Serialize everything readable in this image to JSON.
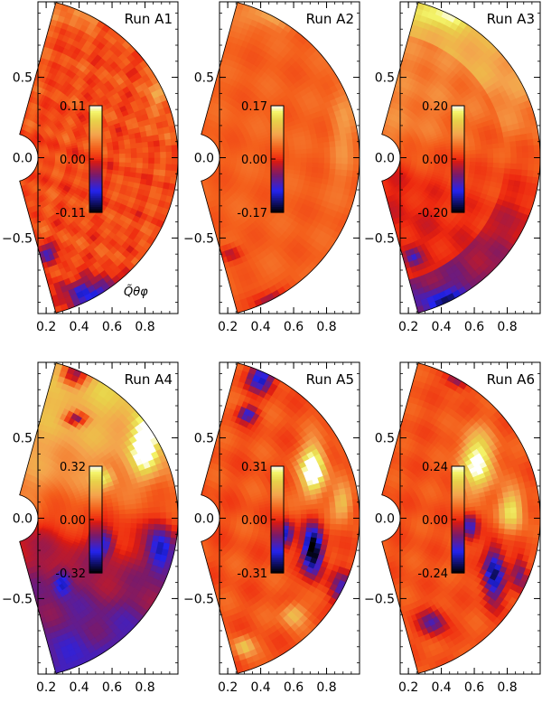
{
  "chart_data": [
    {
      "type": "heatmap",
      "title": "Run A1",
      "colorbar": {
        "max_label": "0.11",
        "zero_label": "0.00",
        "min_label": "-0.11",
        "range": [
          -0.11,
          0.11
        ]
      },
      "annotation": "Q̃θφ",
      "xlim": [
        0.15,
        1.0
      ],
      "ylim": [
        -0.97,
        0.97
      ],
      "xticks": [
        "0.2",
        "0.4",
        "0.6",
        "0.8"
      ],
      "yticks": [
        "0.5",
        "0.0",
        "−0.5"
      ],
      "inner_radius": 0.15,
      "outer_radius": 1.0,
      "latitude_extent": 75,
      "pattern": "mostly_positive_noisy"
    },
    {
      "type": "heatmap",
      "title": "Run A2",
      "colorbar": {
        "max_label": "0.17",
        "zero_label": "0.00",
        "min_label": "-0.17",
        "range": [
          -0.17,
          0.17
        ]
      },
      "annotation": "",
      "xlim": [
        0.15,
        1.0
      ],
      "ylim": [
        -0.97,
        0.97
      ],
      "xticks": [
        "0.2",
        "0.4",
        "0.6",
        "0.8"
      ],
      "yticks": [
        "0.5",
        "0.0",
        "−0.5"
      ],
      "inner_radius": 0.15,
      "outer_radius": 1.0,
      "latitude_extent": 75,
      "pattern": "mostly_positive_smooth"
    },
    {
      "type": "heatmap",
      "title": "Run A3",
      "colorbar": {
        "max_label": "0.20",
        "zero_label": "0.00",
        "min_label": "-0.20",
        "range": [
          -0.2,
          0.2
        ]
      },
      "annotation": "",
      "xlim": [
        0.15,
        1.0
      ],
      "ylim": [
        -0.97,
        0.97
      ],
      "xticks": [
        "0.2",
        "0.4",
        "0.6",
        "0.8"
      ],
      "yticks": [
        "0.5",
        "0.0",
        "−0.5"
      ],
      "inner_radius": 0.15,
      "outer_radius": 1.0,
      "latitude_extent": 75,
      "pattern": "antisymmetric_weak"
    },
    {
      "type": "heatmap",
      "title": "Run A4",
      "colorbar": {
        "max_label": "0.32",
        "zero_label": "0.00",
        "min_label": "-0.32",
        "range": [
          -0.32,
          0.32
        ]
      },
      "annotation": "",
      "xlim": [
        0.15,
        1.0
      ],
      "ylim": [
        -0.97,
        0.97
      ],
      "xticks": [
        "0.2",
        "0.4",
        "0.6",
        "0.8"
      ],
      "yticks": [
        "0.5",
        "0.0",
        "−0.5"
      ],
      "inner_radius": 0.15,
      "outer_radius": 1.0,
      "latitude_extent": 75,
      "pattern": "antisymmetric_strong"
    },
    {
      "type": "heatmap",
      "title": "Run A5",
      "colorbar": {
        "max_label": "0.31",
        "zero_label": "0.00",
        "min_label": "-0.31",
        "range": [
          -0.31,
          0.31
        ]
      },
      "annotation": "",
      "xlim": [
        0.15,
        1.0
      ],
      "ylim": [
        -0.97,
        0.97
      ],
      "xticks": [
        "0.2",
        "0.4",
        "0.6",
        "0.8"
      ],
      "yticks": [
        "0.5",
        "0.0",
        "−0.5"
      ],
      "inner_radius": 0.15,
      "outer_radius": 1.0,
      "latitude_extent": 75,
      "pattern": "equatorial_cells"
    },
    {
      "type": "heatmap",
      "title": "Run A6",
      "colorbar": {
        "max_label": "0.24",
        "zero_label": "0.00",
        "min_label": "-0.24",
        "range": [
          -0.24,
          0.24
        ]
      },
      "annotation": "",
      "xlim": [
        0.15,
        1.0
      ],
      "ylim": [
        -0.97,
        0.97
      ],
      "xticks": [
        "0.2",
        "0.4",
        "0.6",
        "0.8"
      ],
      "yticks": [
        "0.5",
        "0.0",
        "−0.5"
      ],
      "inner_radius": 0.15,
      "outer_radius": 1.0,
      "latitude_extent": 75,
      "pattern": "banded_cells"
    }
  ],
  "colormap": {
    "stops": [
      {
        "v": -1.0,
        "color": "#000000"
      },
      {
        "v": -0.82,
        "color": "#10106a"
      },
      {
        "v": -0.6,
        "color": "#2323ee"
      },
      {
        "v": -0.3,
        "color": "#7a1a6a"
      },
      {
        "v": -0.05,
        "color": "#d81a14"
      },
      {
        "v": 0.0,
        "color": "#ee2a10"
      },
      {
        "v": 0.2,
        "color": "#f4601c"
      },
      {
        "v": 0.45,
        "color": "#f4a24c"
      },
      {
        "v": 0.72,
        "color": "#e8d24a"
      },
      {
        "v": 0.88,
        "color": "#f4f46a"
      },
      {
        "v": 1.0,
        "color": "#ffffff"
      }
    ]
  }
}
